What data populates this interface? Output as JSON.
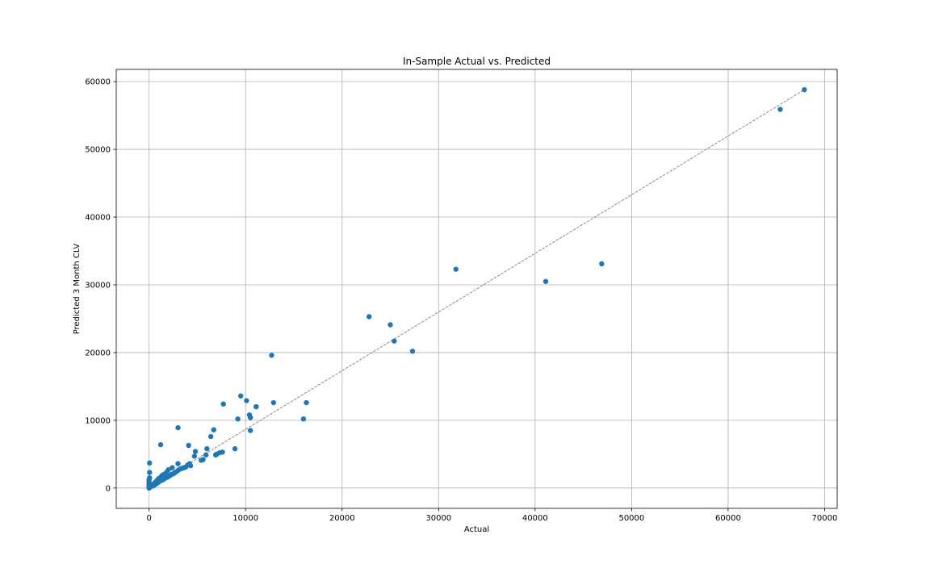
{
  "chart_data": {
    "type": "scatter",
    "title": "In-Sample Actual vs. Predicted",
    "xlabel": "Actual",
    "ylabel": "Predicted 3 Month CLV",
    "xlim": [
      -3400,
      71300
    ],
    "ylim": [
      -3000,
      61800
    ],
    "xticks": [
      0,
      10000,
      20000,
      30000,
      40000,
      50000,
      60000,
      70000
    ],
    "yticks": [
      0,
      10000,
      20000,
      30000,
      40000,
      50000,
      60000
    ],
    "grid": true,
    "marker_color": "#1f77b4",
    "reference_line": {
      "from": [
        0,
        0
      ],
      "to": [
        67900,
        58800
      ],
      "style": "dashed",
      "color": "#808080"
    },
    "points": [
      [
        67900,
        58800
      ],
      [
        65400,
        55900
      ],
      [
        46900,
        33100
      ],
      [
        41100,
        30500
      ],
      [
        31800,
        32300
      ],
      [
        27300,
        20200
      ],
      [
        25400,
        21700
      ],
      [
        25000,
        24100
      ],
      [
        22800,
        25300
      ],
      [
        16300,
        12600
      ],
      [
        16000,
        10200
      ],
      [
        12900,
        12600
      ],
      [
        12700,
        19600
      ],
      [
        11100,
        12000
      ],
      [
        10500,
        8500
      ],
      [
        10500,
        10400
      ],
      [
        10400,
        10800
      ],
      [
        10100,
        12900
      ],
      [
        9500,
        13600
      ],
      [
        9200,
        10200
      ],
      [
        8900,
        5800
      ],
      [
        7700,
        12400
      ],
      [
        7600,
        5300
      ],
      [
        7300,
        5200
      ],
      [
        7000,
        5000
      ],
      [
        6900,
        4900
      ],
      [
        6700,
        8600
      ],
      [
        6400,
        7600
      ],
      [
        6000,
        5800
      ],
      [
        5900,
        4900
      ],
      [
        5600,
        4200
      ],
      [
        5400,
        4100
      ],
      [
        4800,
        5400
      ],
      [
        4700,
        4700
      ],
      [
        4100,
        6300
      ],
      [
        4300,
        3300
      ],
      [
        4200,
        3600
      ],
      [
        4000,
        3400
      ],
      [
        3800,
        3100
      ],
      [
        3600,
        3000
      ],
      [
        3400,
        2900
      ],
      [
        3200,
        2800
      ],
      [
        3000,
        8900
      ],
      [
        3000,
        2600
      ],
      [
        3000,
        3600
      ],
      [
        2800,
        2400
      ],
      [
        2600,
        2200
      ],
      [
        2500,
        2100
      ],
      [
        2400,
        3000
      ],
      [
        2300,
        2000
      ],
      [
        2200,
        1900
      ],
      [
        2100,
        1800
      ],
      [
        2000,
        2700
      ],
      [
        2000,
        1700
      ],
      [
        1900,
        1600
      ],
      [
        1800,
        2300
      ],
      [
        1700,
        1500
      ],
      [
        1600,
        1400
      ],
      [
        1500,
        2000
      ],
      [
        1500,
        1300
      ],
      [
        1400,
        1200
      ],
      [
        1300,
        1800
      ],
      [
        1200,
        6400
      ],
      [
        1200,
        1100
      ],
      [
        1100,
        1000
      ],
      [
        1000,
        1400
      ],
      [
        1000,
        900
      ],
      [
        900,
        800
      ],
      [
        800,
        1100
      ],
      [
        800,
        700
      ],
      [
        700,
        600
      ],
      [
        600,
        800
      ],
      [
        600,
        500
      ],
      [
        500,
        400
      ],
      [
        400,
        500
      ],
      [
        300,
        300
      ],
      [
        200,
        200
      ],
      [
        100,
        150
      ],
      [
        50,
        3700
      ],
      [
        50,
        2300
      ],
      [
        50,
        1500
      ],
      [
        0,
        1200
      ],
      [
        0,
        900
      ],
      [
        0,
        700
      ],
      [
        0,
        500
      ],
      [
        0,
        300
      ],
      [
        0,
        100
      ],
      [
        0,
        0
      ]
    ]
  }
}
